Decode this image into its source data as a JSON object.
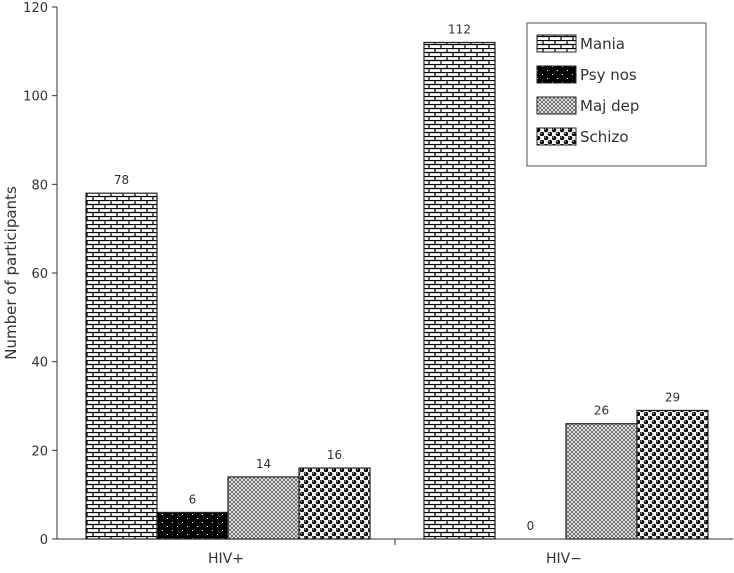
{
  "chart_data": {
    "type": "bar",
    "categories": [
      "HIV+",
      "HIV−"
    ],
    "series": [
      {
        "name": "Mania",
        "values": [
          78,
          112
        ],
        "pattern": "brick"
      },
      {
        "name": "Psy nos",
        "values": [
          6,
          0
        ],
        "pattern": "black-dots"
      },
      {
        "name": "Maj dep",
        "values": [
          14,
          26
        ],
        "pattern": "crosshatch"
      },
      {
        "name": "Schizo",
        "values": [
          16,
          29
        ],
        "pattern": "spheres"
      }
    ],
    "data_labels": [
      [
        "78",
        "112"
      ],
      [
        "6",
        "0"
      ],
      [
        "14",
        "26"
      ],
      [
        "16",
        "29"
      ]
    ],
    "title": "",
    "xlabel": "",
    "ylabel": "Number of participants",
    "ylim": [
      0,
      120
    ],
    "yticks": [
      "0",
      "20",
      "40",
      "60",
      "80",
      "100",
      "120"
    ],
    "grid": false,
    "legend_position": "top-right"
  }
}
